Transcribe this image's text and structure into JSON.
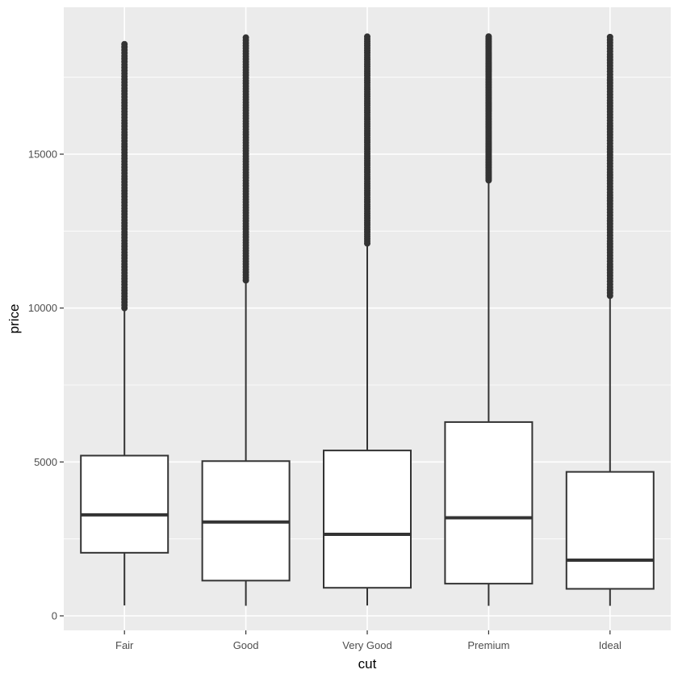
{
  "chart_data": {
    "type": "boxplot",
    "xlabel": "cut",
    "ylabel": "price",
    "ylim": [
      -1100,
      19400
    ],
    "y_ticks": [
      0,
      5000,
      10000,
      15000
    ],
    "y_tick_labels": [
      "0",
      "5000",
      "10000",
      "15000"
    ],
    "grid": true,
    "categories": [
      "Fair",
      "Good",
      "Very Good",
      "Premium",
      "Ideal"
    ],
    "boxes": [
      {
        "category": "Fair",
        "whisker_low": 337,
        "q1": 2050,
        "median": 3282,
        "q3": 5206,
        "whisker_high": 9960,
        "outliers_min": 10000,
        "outliers_max": 18574
      },
      {
        "category": "Good",
        "whisker_low": 327,
        "q1": 1145,
        "median": 3050,
        "q3": 5028,
        "whisker_high": 10850,
        "outliers_min": 10900,
        "outliers_max": 18788
      },
      {
        "category": "Very Good",
        "whisker_low": 336,
        "q1": 912,
        "median": 2648,
        "q3": 5373,
        "whisker_high": 12050,
        "outliers_min": 12100,
        "outliers_max": 18818
      },
      {
        "category": "Premium",
        "whisker_low": 326,
        "q1": 1046,
        "median": 3185,
        "q3": 6296,
        "whisker_high": 14100,
        "outliers_min": 14150,
        "outliers_max": 18823
      },
      {
        "category": "Ideal",
        "whisker_low": 326,
        "q1": 878,
        "median": 1810,
        "q3": 4678,
        "whisker_high": 10350,
        "outliers_min": 10400,
        "outliers_max": 18806
      }
    ],
    "colors": {
      "panel_background": "#ebebeb",
      "grid_major": "#ffffff",
      "box_fill": "#ffffff",
      "box_stroke": "#333333",
      "outlier": "#333333",
      "tick_label": "#4d4d4d",
      "axis_title": "#000000"
    }
  }
}
